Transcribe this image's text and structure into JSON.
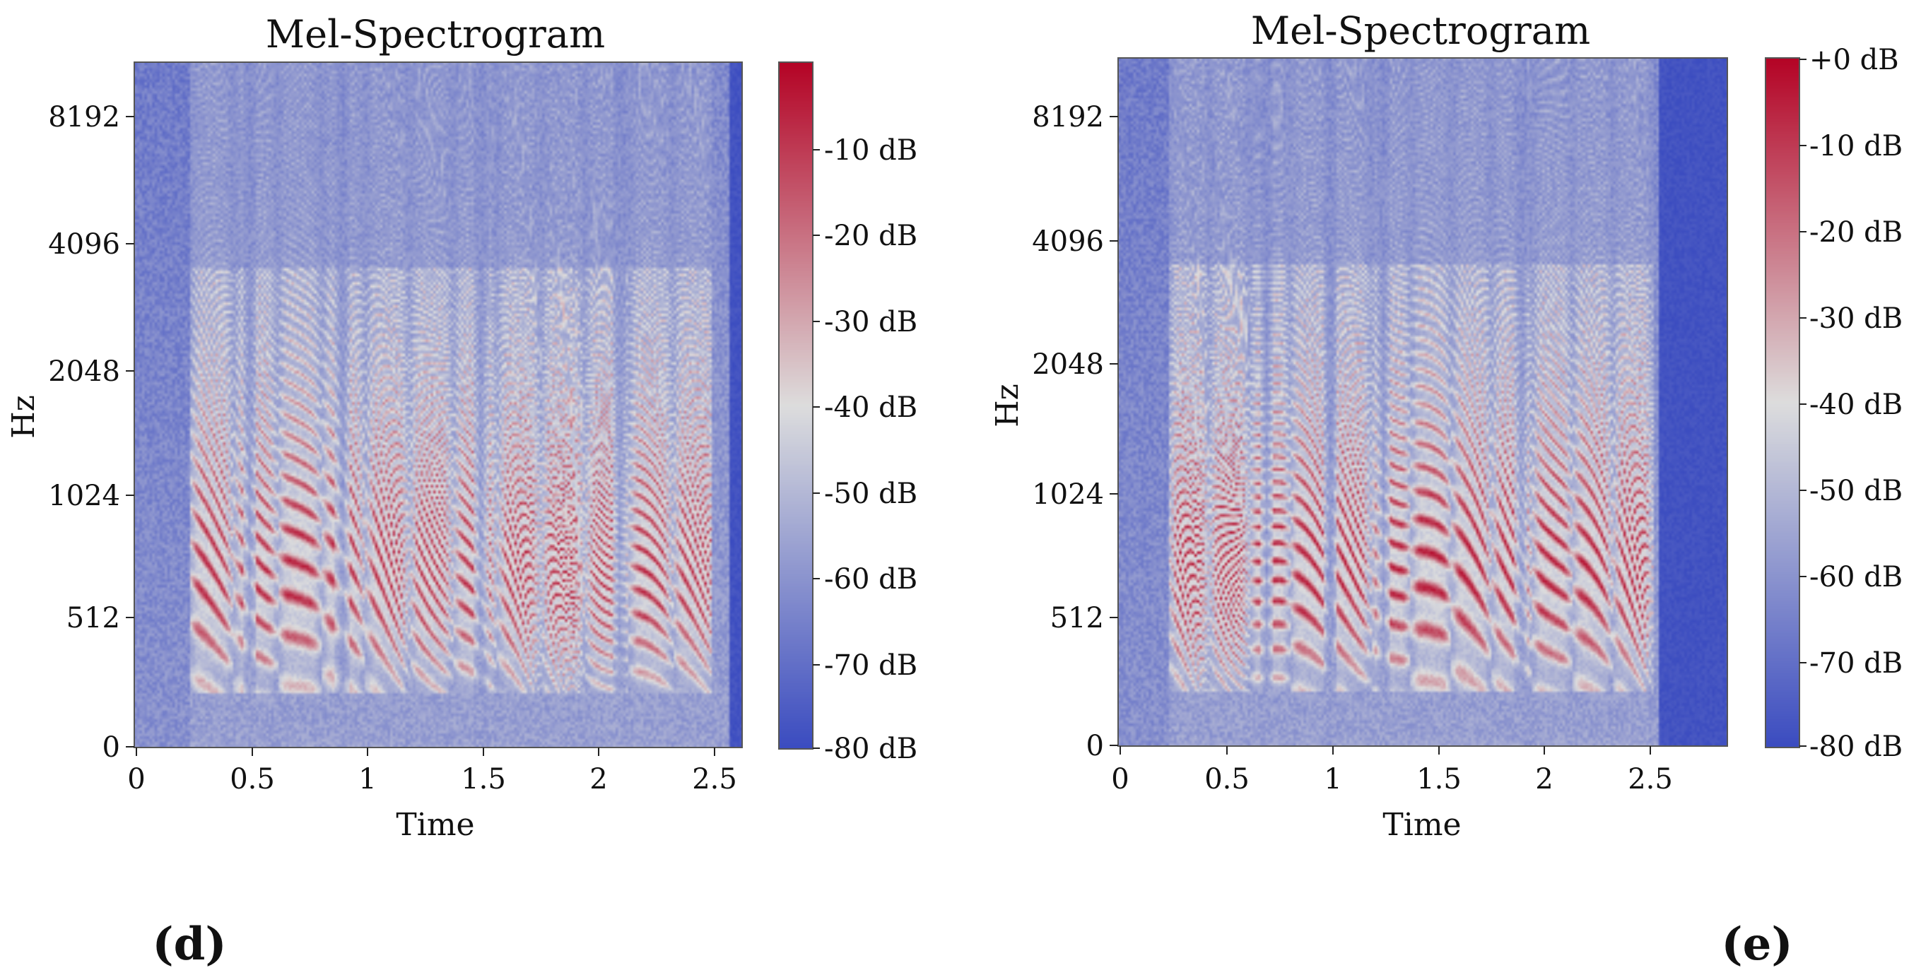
{
  "figure_type": "mel-spectrogram comparison",
  "chart_data": [
    {
      "type": "heatmap",
      "panel_label": "(d)",
      "title": "Mel-Spectrogram",
      "xlabel": "Time",
      "ylabel": "Hz",
      "x_ticks": [
        "0",
        "0.5",
        "1",
        "1.5",
        "2",
        "2.5"
      ],
      "x_tick_values": [
        0,
        0.5,
        1,
        1.5,
        2,
        2.5
      ],
      "xlim": [
        0,
        2.63
      ],
      "y_ticks": [
        "0",
        "512",
        "1024",
        "2048",
        "4096",
        "8192"
      ],
      "y_tick_values": [
        0,
        512,
        1024,
        2048,
        4096,
        8192
      ],
      "ylim_hz": [
        0,
        11025
      ],
      "colorbar_labels": [
        "-10 dB",
        "-20 dB",
        "-30 dB",
        "-40 dB",
        "-50 dB",
        "-60 dB",
        "-70 dB",
        "-80 dB"
      ],
      "colorbar_values": [
        -10,
        -20,
        -30,
        -40,
        -50,
        -60,
        -70,
        -80
      ],
      "colorbar_range_db": [
        -80,
        0
      ],
      "cmap": "coolwarm",
      "signal_start_s": 0.24,
      "signal_end_s": 2.5,
      "silence_start_s": 2.57,
      "pause_times_s": [
        0.5,
        0.9,
        1.5,
        2.1
      ],
      "harmonic_strength": 0.85
    },
    {
      "type": "heatmap",
      "panel_label": "(e)",
      "title": "Mel-Spectrogram",
      "xlabel": "Time",
      "ylabel": "Hz",
      "x_ticks": [
        "0",
        "0.5",
        "1",
        "1.5",
        "2",
        "2.5"
      ],
      "x_tick_values": [
        0,
        0.5,
        1,
        1.5,
        2,
        2.5
      ],
      "xlim": [
        0,
        2.87
      ],
      "y_ticks": [
        "0",
        "512",
        "1024",
        "2048",
        "4096",
        "8192"
      ],
      "y_tick_values": [
        0,
        512,
        1024,
        2048,
        4096,
        8192
      ],
      "ylim_hz": [
        0,
        11025
      ],
      "colorbar_labels": [
        "+0 dB",
        "-10 dB",
        "-20 dB",
        "-30 dB",
        "-40 dB",
        "-50 dB",
        "-60 dB",
        "-70 dB",
        "-80 dB"
      ],
      "colorbar_values": [
        0,
        -10,
        -20,
        -30,
        -40,
        -50,
        -60,
        -70,
        -80
      ],
      "colorbar_range_db": [
        -80,
        0
      ],
      "cmap": "coolwarm",
      "signal_start_s": 0.24,
      "signal_end_s": 2.52,
      "silence_start_s": 2.55,
      "pause_times_s": [
        0.7,
        1.0,
        1.25,
        1.9
      ],
      "harmonic_strength": 0.9
    }
  ],
  "colors": {
    "low_db": "#3b4cc0",
    "mid_db": "#dddddd",
    "high_db": "#b40426",
    "frame": "#555555"
  }
}
